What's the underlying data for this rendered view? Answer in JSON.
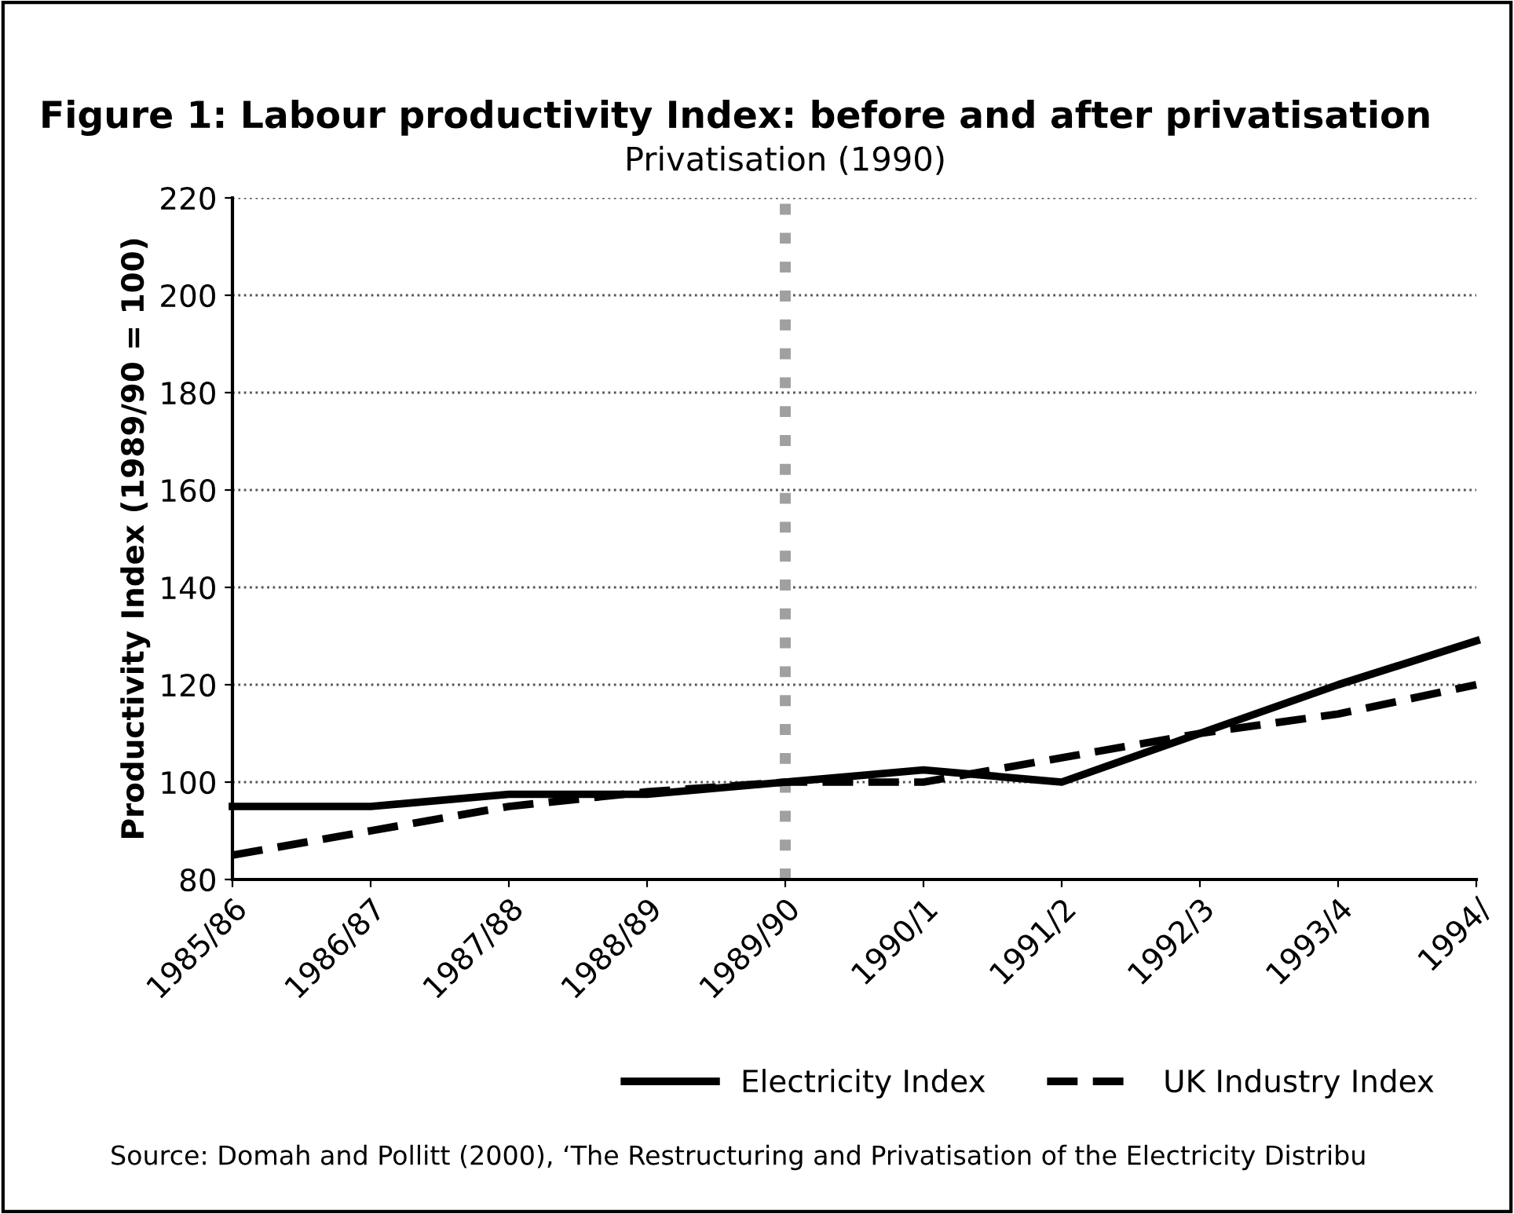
{
  "chart_data": {
    "type": "line",
    "title": "Figure 1: Labour productivity Index: before and after privatisation",
    "ylabel": "Productivity Index (1989/90 = 100)",
    "categories": [
      "1985/86",
      "1986/87",
      "1987/88",
      "1988/89",
      "1989/90",
      "1990/1",
      "1991/2",
      "1992/3",
      "1993/4",
      "1994/"
    ],
    "series": [
      {
        "name": "Electricity Index",
        "color": "#000000",
        "line_style": "solid",
        "values": [
          95,
          95,
          97.5,
          97.5,
          100,
          102.5,
          100,
          110,
          120,
          129
        ]
      },
      {
        "name": "UK Industry Index",
        "color": "#000000",
        "line_style": "dashed",
        "values": [
          85,
          90,
          95,
          98,
          100,
          100,
          105,
          110,
          114,
          120
        ]
      }
    ],
    "ylim": [
      80,
      220
    ],
    "yticks": [
      80,
      100,
      120,
      140,
      160,
      180,
      200,
      220
    ],
    "grid": "y",
    "legend": "bottom",
    "marker": "none",
    "ref_lines": [
      {
        "axis": "x",
        "value": "1989/90",
        "label": "Privatisation (1990)",
        "color": "#a0a0a0",
        "line_style": "dotted"
      }
    ],
    "annotations": [
      "Source: Domah and Pollitt (2000), ‘The Restructuring and Privatisation of the Electricity Distribu"
    ]
  }
}
